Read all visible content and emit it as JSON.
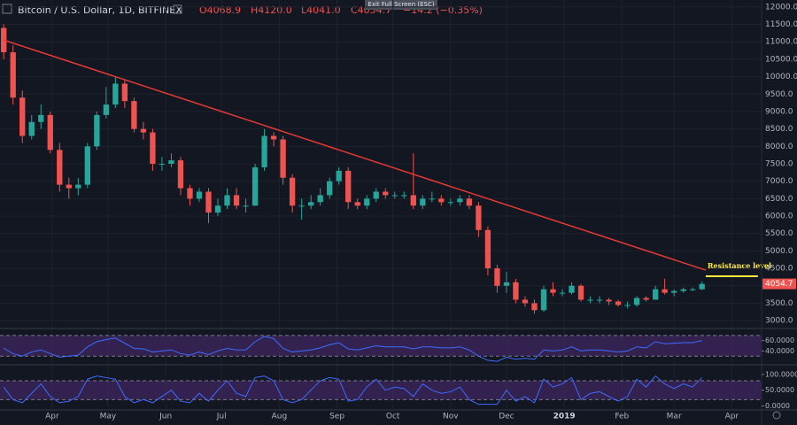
{
  "header": {
    "symbol": "Bitcoin / U.S. Dollar, 1D, BITFINEX",
    "ohlc": [
      "O4068.9",
      "H4120.0",
      "L4041.0",
      "C4054.7",
      "−14.2 (−0.35%)"
    ],
    "tooltip": "Exit Full Screen (ESC)"
  },
  "chart_data": [
    {
      "type": "candlestick",
      "x": [
        0,
        5,
        10,
        15,
        20,
        25,
        30,
        35,
        40,
        45,
        50,
        55,
        60,
        65,
        70,
        75,
        80,
        85,
        90,
        95,
        100,
        105,
        110,
        115,
        120,
        125,
        130,
        135,
        140,
        145,
        150,
        155,
        160,
        165,
        170,
        175,
        180,
        185,
        190,
        195,
        200,
        205,
        210,
        215,
        220,
        225,
        230,
        235,
        240,
        245,
        250,
        255,
        260,
        265,
        270,
        275,
        280,
        285,
        290,
        295,
        300,
        305,
        310,
        315,
        320,
        325,
        330,
        335,
        340,
        345,
        350,
        355,
        360,
        365,
        370,
        375
      ],
      "open": [
        11400,
        10700,
        9400,
        8300,
        8700,
        8900,
        7900,
        6900,
        6800,
        6900,
        8000,
        8900,
        9200,
        9800,
        9300,
        8500,
        8400,
        7500,
        7500,
        7600,
        6800,
        6500,
        6700,
        6100,
        6300,
        6600,
        6300,
        6300,
        7400,
        8300,
        8200,
        7100,
        6300,
        6300,
        6400,
        6600,
        7000,
        7300,
        6400,
        6300,
        6500,
        6700,
        6600,
        6600,
        6600,
        6300,
        6500,
        6500,
        6400,
        6400,
        6500,
        6300,
        5600,
        4500,
        4000,
        4100,
        3600,
        3500,
        3300,
        3900,
        3800,
        3800,
        4000,
        3600,
        3600,
        3600,
        3550,
        3450,
        3450,
        3650,
        3600,
        3900,
        3800,
        3850,
        3900,
        3900
      ],
      "high": [
        11500,
        10900,
        9600,
        8900,
        9200,
        9000,
        8100,
        7100,
        7100,
        8100,
        9000,
        9700,
        10000,
        9900,
        9400,
        8700,
        8500,
        7700,
        7800,
        7700,
        6900,
        6800,
        6800,
        6500,
        6800,
        6800,
        6500,
        7500,
        8500,
        8400,
        8300,
        7200,
        6500,
        6600,
        6800,
        7100,
        7400,
        7400,
        6500,
        6600,
        6800,
        6800,
        6700,
        6700,
        7800,
        6600,
        6700,
        6600,
        6500,
        6600,
        6600,
        6400,
        5700,
        4600,
        4400,
        4200,
        3700,
        3600,
        4000,
        4100,
        3900,
        4100,
        4050,
        3700,
        3700,
        3650,
        3600,
        3550,
        3700,
        3700,
        4000,
        4200,
        3900,
        3950,
        3950,
        4120
      ],
      "low": [
        10500,
        9200,
        8100,
        8200,
        8500,
        7800,
        6700,
        6500,
        6600,
        6800,
        7900,
        8800,
        9100,
        9100,
        8400,
        8200,
        7300,
        7300,
        7400,
        6600,
        6300,
        6400,
        5800,
        6000,
        6200,
        6200,
        6100,
        6300,
        7300,
        8000,
        6900,
        6100,
        5900,
        6200,
        6300,
        6500,
        6900,
        6200,
        6200,
        6200,
        6400,
        6500,
        6500,
        6500,
        6200,
        6200,
        6400,
        6300,
        6300,
        6300,
        6200,
        5400,
        4300,
        3800,
        3800,
        3500,
        3400,
        3200,
        3250,
        3700,
        3700,
        3750,
        3550,
        3500,
        3500,
        3450,
        3400,
        3350,
        3400,
        3550,
        3600,
        3750,
        3700,
        3800,
        3850,
        3880
      ],
      "close": [
        10700,
        9400,
        8300,
        8700,
        8900,
        7900,
        6900,
        6800,
        6900,
        8000,
        8900,
        9200,
        9800,
        9300,
        8500,
        8400,
        7500,
        7500,
        7600,
        6800,
        6500,
        6700,
        6100,
        6300,
        6600,
        6300,
        6300,
        7400,
        8300,
        8200,
        7100,
        6300,
        6300,
        6400,
        6600,
        7000,
        7300,
        6400,
        6300,
        6500,
        6700,
        6600,
        6600,
        6600,
        6300,
        6500,
        6500,
        6400,
        6400,
        6500,
        6300,
        5600,
        4500,
        4000,
        4100,
        3600,
        3500,
        3300,
        3900,
        3800,
        3800,
        4000,
        3600,
        3600,
        3600,
        3550,
        3450,
        3450,
        3650,
        3600,
        3900,
        3800,
        3850,
        3900,
        3900,
        4054.7
      ],
      "up_color": "#26a69a",
      "down_color": "#ef5350",
      "xlim": [
        -2,
        407
      ],
      "xticks": [
        {
          "value": 26,
          "label": "Apr"
        },
        {
          "value": 56,
          "label": "May"
        },
        {
          "value": 87,
          "label": "Jun"
        },
        {
          "value": 117,
          "label": "Jul"
        },
        {
          "value": 148,
          "label": "Aug"
        },
        {
          "value": 179,
          "label": "Sep"
        },
        {
          "value": 209,
          "label": "Oct"
        },
        {
          "value": 240,
          "label": "Nov"
        },
        {
          "value": 270,
          "label": "Dec"
        },
        {
          "value": 301,
          "label": "2019"
        },
        {
          "value": 332,
          "label": "Feb"
        },
        {
          "value": 360,
          "label": "Mar"
        },
        {
          "value": 391,
          "label": "Apr"
        }
      ],
      "ylim": [
        2800,
        12200
      ],
      "yticks": [
        {
          "value": 3000,
          "label": "3000.0"
        },
        {
          "value": 3500,
          "label": "3500.0"
        },
        {
          "value": 4000,
          "label": "4000.0"
        },
        {
          "value": 4500,
          "label": "4500.0"
        },
        {
          "value": 5000,
          "label": "5000.0"
        },
        {
          "value": 5500,
          "label": "5500.0"
        },
        {
          "value": 6000,
          "label": "6000.0"
        },
        {
          "value": 6500,
          "label": "6500.0"
        },
        {
          "value": 7000,
          "label": "7000.0"
        },
        {
          "value": 7500,
          "label": "7500.0"
        },
        {
          "value": 8000,
          "label": "8000.0"
        },
        {
          "value": 8500,
          "label": "8500.0"
        },
        {
          "value": 9000,
          "label": "9000.0"
        },
        {
          "value": 9500,
          "label": "9500.0"
        },
        {
          "value": 10000,
          "label": "10000.0"
        },
        {
          "value": 10500,
          "label": "10500.0"
        },
        {
          "value": 11000,
          "label": "11000.0"
        },
        {
          "value": 11500,
          "label": "11500.0"
        },
        {
          "value": 12000,
          "label": "12000.0"
        }
      ],
      "grid": true,
      "last_price": 4054.7,
      "last_price_color": "#ef5350",
      "trendline": {
        "x": [
          0,
          377
        ],
        "y": [
          11050,
          4450
        ],
        "color": "#e53935"
      },
      "resistance": {
        "label": "Resistance level",
        "x": [
          377,
          405
        ],
        "y": 4275,
        "color": "#ffeb3b"
      }
    },
    {
      "type": "line",
      "name": "RSI",
      "color": "#3d6bff",
      "x": [
        0,
        5,
        10,
        15,
        20,
        25,
        30,
        35,
        40,
        45,
        50,
        55,
        60,
        65,
        70,
        75,
        80,
        85,
        90,
        95,
        100,
        105,
        110,
        115,
        120,
        125,
        130,
        135,
        140,
        145,
        150,
        155,
        160,
        165,
        170,
        175,
        180,
        185,
        190,
        195,
        200,
        205,
        210,
        215,
        220,
        225,
        230,
        235,
        240,
        245,
        250,
        255,
        260,
        265,
        270,
        275,
        280,
        285,
        290,
        295,
        300,
        305,
        310,
        315,
        320,
        325,
        330,
        335,
        340,
        345,
        350,
        355,
        360,
        365,
        370,
        375
      ],
      "values": [
        45,
        35,
        30,
        38,
        42,
        35,
        28,
        30,
        32,
        48,
        58,
        62,
        65,
        55,
        45,
        44,
        38,
        40,
        42,
        35,
        32,
        38,
        33,
        40,
        45,
        42,
        42,
        58,
        68,
        64,
        45,
        38,
        40,
        42,
        46,
        52,
        56,
        44,
        42,
        46,
        50,
        48,
        48,
        48,
        44,
        48,
        48,
        46,
        46,
        48,
        42,
        30,
        22,
        20,
        28,
        24,
        26,
        24,
        42,
        40,
        42,
        48,
        40,
        42,
        42,
        40,
        38,
        40,
        48,
        46,
        58,
        54,
        55,
        56,
        56,
        60
      ],
      "xlim": [
        -2,
        407
      ],
      "ylim": [
        15,
        80
      ],
      "yticks": [
        {
          "value": 60,
          "label": "60.0000"
        },
        {
          "value": 40,
          "label": "40.0000"
        }
      ],
      "bands": [
        30,
        70
      ],
      "band_color": "#4a2a6e"
    },
    {
      "type": "line",
      "name": "Stoch",
      "color": "#3d6bff",
      "x": [
        0,
        5,
        10,
        15,
        20,
        25,
        30,
        35,
        40,
        45,
        50,
        55,
        60,
        65,
        70,
        75,
        80,
        85,
        90,
        95,
        100,
        105,
        110,
        115,
        120,
        125,
        130,
        135,
        140,
        145,
        150,
        155,
        160,
        165,
        170,
        175,
        180,
        185,
        190,
        195,
        200,
        205,
        210,
        215,
        220,
        225,
        230,
        235,
        240,
        245,
        250,
        255,
        260,
        265,
        270,
        275,
        280,
        285,
        290,
        295,
        300,
        305,
        310,
        315,
        320,
        325,
        330,
        335,
        340,
        345,
        350,
        355,
        360,
        365,
        370,
        375
      ],
      "values": [
        60,
        20,
        10,
        40,
        70,
        30,
        10,
        15,
        30,
        85,
        95,
        90,
        85,
        30,
        10,
        20,
        10,
        30,
        50,
        15,
        10,
        40,
        15,
        50,
        80,
        40,
        30,
        90,
        95,
        80,
        20,
        10,
        20,
        50,
        80,
        90,
        85,
        15,
        20,
        60,
        85,
        50,
        60,
        55,
        30,
        70,
        50,
        40,
        45,
        60,
        20,
        5,
        5,
        5,
        50,
        15,
        30,
        10,
        85,
        60,
        70,
        90,
        20,
        40,
        45,
        30,
        15,
        30,
        85,
        60,
        95,
        70,
        55,
        70,
        60,
        90
      ],
      "xlim": [
        -2,
        407
      ],
      "ylim": [
        -10,
        125
      ],
      "yticks": [
        {
          "value": 100,
          "label": "100.0000"
        },
        {
          "value": 50,
          "label": "50.0000"
        },
        {
          "value": 0,
          "label": "0.0000"
        }
      ],
      "bands": [
        20,
        80
      ],
      "band_color": "#4a2a6e"
    }
  ]
}
